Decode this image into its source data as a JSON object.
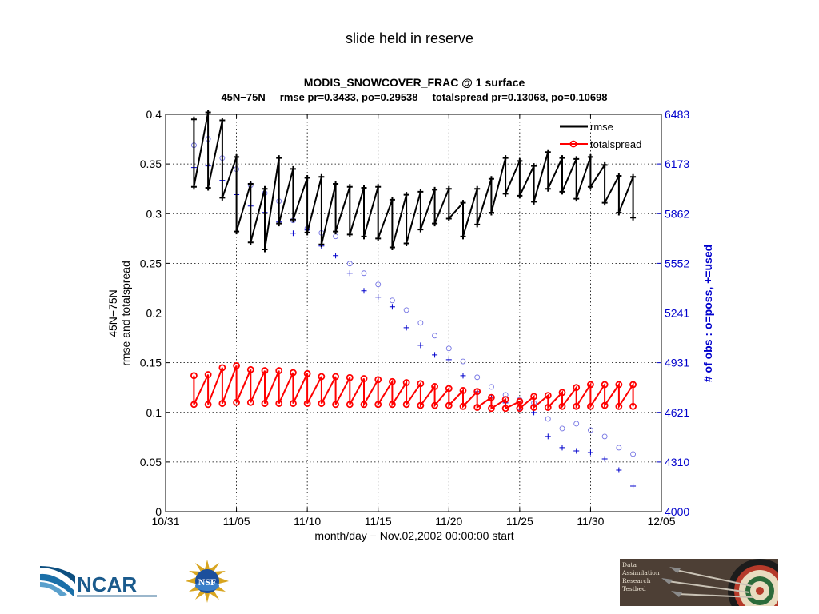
{
  "slide": {
    "heading": "slide held in reserve"
  },
  "chart_data": {
    "type": "line",
    "title": "MODIS_SNOWCOVER_FRAC @ 1 surface",
    "subtitle": "45N−75N     rmse pr=0.3433, po=0.29538     totalspread pr=0.13068, po=0.10698",
    "xlabel": "month/day − Nov.02,2002 00:00:00 start",
    "ylabel": [
      "45N−75N",
      "rmse and totalspread"
    ],
    "ylabel_right": "# of obs : o=poss, +=used",
    "x_ticks": [
      "10/31",
      "11/05",
      "11/10",
      "11/15",
      "11/20",
      "11/25",
      "11/30",
      "12/05"
    ],
    "x_tick_days": [
      0,
      5,
      10,
      15,
      20,
      25,
      30,
      35
    ],
    "xlim": [
      0,
      35
    ],
    "ylim": [
      0,
      0.4
    ],
    "y_ticks": [
      "0",
      "0.05",
      "0.1",
      "0.15",
      "0.2",
      "0.25",
      "0.3",
      "0.35",
      "0.4"
    ],
    "ylim_right": [
      4000,
      6483
    ],
    "y_ticks_right": [
      "4000",
      "4310",
      "4621",
      "4931",
      "5241",
      "5552",
      "5862",
      "6173",
      "6483"
    ],
    "grid": true,
    "legend_position": "top-right",
    "series": [
      {
        "name": "rmse",
        "color": "#000000",
        "marker": "plus",
        "prior": [
          0.395,
          0.402,
          0.394,
          0.357,
          0.33,
          0.325,
          0.356,
          0.345,
          0.336,
          0.337,
          0.33,
          0.327,
          0.326,
          0.327,
          0.314,
          0.319,
          0.322,
          0.324,
          0.325,
          0.311,
          0.325,
          0.335,
          0.356,
          0.353,
          0.348,
          0.362,
          0.356,
          0.355,
          0.357,
          0.349,
          0.338,
          0.337
        ],
        "posterior": [
          0.327,
          0.326,
          0.316,
          0.282,
          0.271,
          0.264,
          0.29,
          0.294,
          0.281,
          0.269,
          0.282,
          0.279,
          0.277,
          0.275,
          0.266,
          0.27,
          0.284,
          0.29,
          0.295,
          0.277,
          0.289,
          0.301,
          0.32,
          0.318,
          0.312,
          0.325,
          0.322,
          0.315,
          0.327,
          0.311,
          0.301,
          0.296
        ]
      },
      {
        "name": "totalspread",
        "color": "#ff0000",
        "marker": "circle",
        "prior": [
          0.137,
          0.138,
          0.145,
          0.147,
          0.143,
          0.142,
          0.142,
          0.14,
          0.139,
          0.136,
          0.136,
          0.135,
          0.134,
          0.133,
          0.131,
          0.13,
          0.129,
          0.126,
          0.124,
          0.122,
          0.121,
          0.115,
          0.113,
          0.111,
          0.116,
          0.117,
          0.12,
          0.125,
          0.128,
          0.128,
          0.128,
          0.128
        ],
        "posterior": [
          0.108,
          0.108,
          0.109,
          0.11,
          0.11,
          0.109,
          0.109,
          0.109,
          0.109,
          0.109,
          0.108,
          0.108,
          0.108,
          0.108,
          0.108,
          0.108,
          0.107,
          0.107,
          0.107,
          0.106,
          0.105,
          0.104,
          0.104,
          0.104,
          0.105,
          0.105,
          0.106,
          0.106,
          0.106,
          0.107,
          0.106,
          0.106
        ]
      }
    ],
    "obs_color": "#0000cc",
    "obs_possible": [
      6290,
      6330,
      6210,
      6140,
      6040,
      5990,
      5940,
      5820,
      5770,
      5742,
      5720,
      5550,
      5490,
      5420,
      5320,
      5260,
      5180,
      5100,
      5020,
      4939,
      4840,
      4780,
      4730,
      4700,
      4680,
      4580,
      4520,
      4550,
      4510,
      4470,
      4400,
      4360
    ],
    "obs_used": [
      6150,
      6160,
      6070,
      5981,
      5910,
      5870,
      5810,
      5740,
      5760,
      5660,
      5600,
      5490,
      5380,
      5340,
      5280,
      5150,
      5040,
      4980,
      4950,
      4850,
      4750,
      4710,
      4680,
      4640,
      4620,
      4470,
      4400,
      4380,
      4370,
      4330,
      4260,
      4160
    ]
  }
}
